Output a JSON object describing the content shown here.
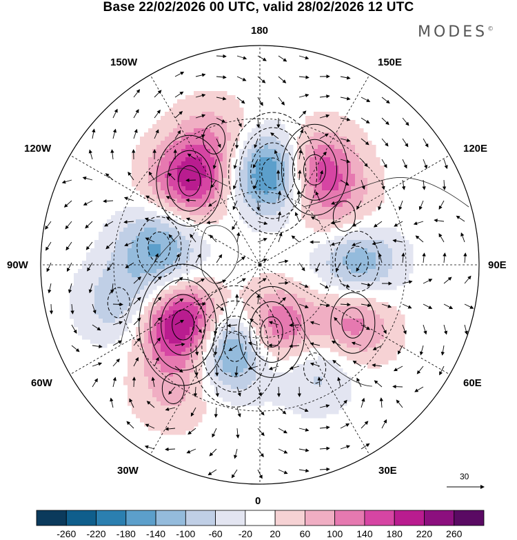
{
  "title": "Base 22/02/2026 00 UTC, valid 28/02/2026 12 UTC",
  "brand": {
    "name": "MODES",
    "mark": "©"
  },
  "longitude_labels": {
    "top": "180",
    "bottom": "0",
    "left": "90W",
    "right": "90E",
    "upper_left": "150W",
    "upper_left2": "120W",
    "upper_right": "150E",
    "upper_right2": "120E",
    "lower_left": "60W",
    "lower_left2": "30W",
    "lower_right": "60E",
    "lower_right2": "30E"
  },
  "reference_vector": {
    "value": "30"
  },
  "colorbar": {
    "ticks": [
      "-260",
      "-220",
      "-180",
      "-140",
      "-100",
      "-60",
      "-20",
      "20",
      "60",
      "100",
      "140",
      "180",
      "220",
      "260"
    ],
    "colors": [
      "#0b3a5c",
      "#0f5e8c",
      "#2b7fb0",
      "#5c9fcb",
      "#94bbdc",
      "#c0cfe6",
      "#e3e5f1",
      "#ffffff",
      "#f6d2d4",
      "#f0aec3",
      "#e679b0",
      "#d645a3",
      "#b91c8f",
      "#8c0f7e",
      "#5a0a63"
    ]
  },
  "anomaly_centers": [
    {
      "lon": 172,
      "colat": 38,
      "value": -240
    },
    {
      "lon": 150,
      "colat": 45,
      "value": 200
    },
    {
      "lon": -140,
      "colat": 45,
      "value": 190
    },
    {
      "lon": -100,
      "colat": 42,
      "value": -150
    },
    {
      "lon": -75,
      "colat": 60,
      "value": -90
    },
    {
      "lon": -52,
      "colat": 40,
      "value": 250
    },
    {
      "lon": -17,
      "colat": 35,
      "value": -240
    },
    {
      "lon": 10,
      "colat": 28,
      "value": 200
    },
    {
      "lon": 92,
      "colat": 40,
      "value": -150
    },
    {
      "lon": 58,
      "colat": 45,
      "value": 130
    },
    {
      "lon": 28,
      "colat": 48,
      "value": -90
    },
    {
      "lon": 120,
      "colat": 40,
      "value": 70
    },
    {
      "lon": -160,
      "colat": 55,
      "value": 80
    },
    {
      "lon": -35,
      "colat": 62,
      "value": 70
    }
  ]
}
